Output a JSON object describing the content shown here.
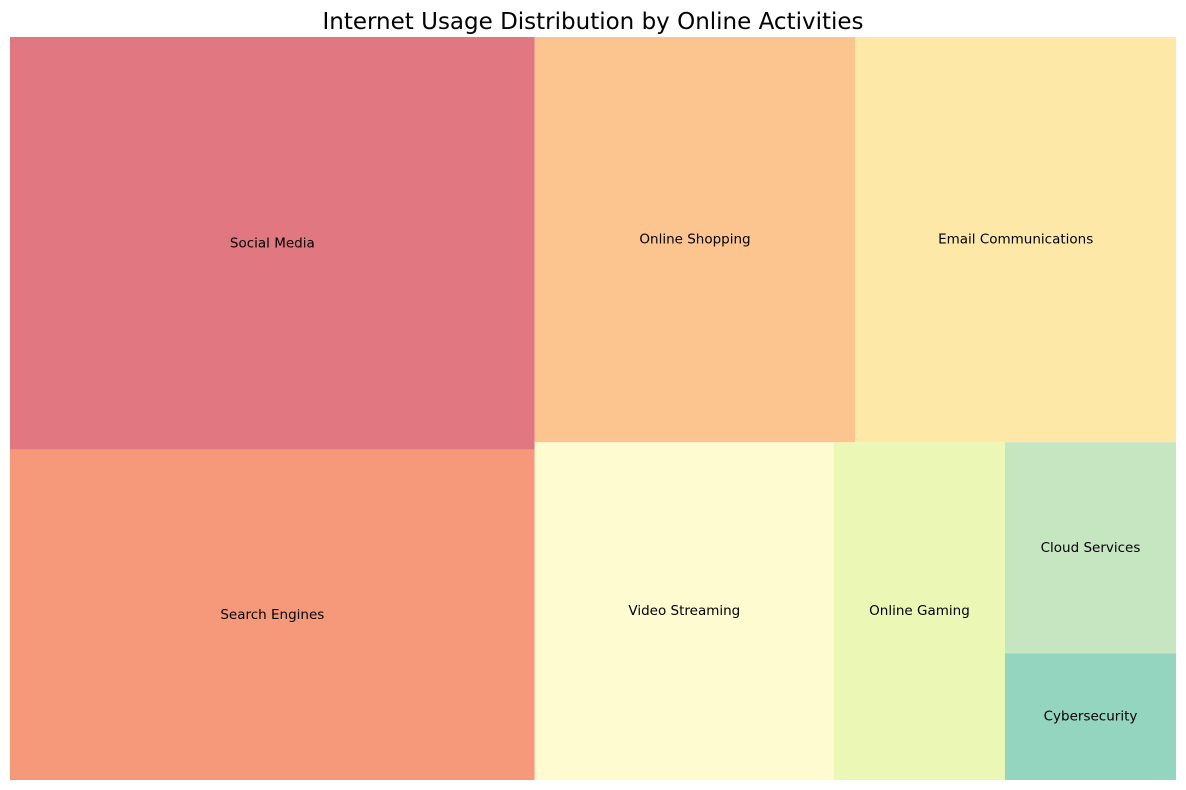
{
  "chart_data": {
    "type": "treemap",
    "title": "Internet Usage Distribution by Online Activities",
    "items": [
      {
        "label": "Social Media",
        "value": 30,
        "color": "#e07781"
      },
      {
        "label": "Search Engines",
        "value": 24,
        "color": "#f6997b"
      },
      {
        "label": "Online Shopping",
        "value": 18,
        "color": "#fcc58f"
      },
      {
        "label": "Email Communications",
        "value": 18,
        "color": "#fde8a8"
      },
      {
        "label": "Video Streaming",
        "value": 14,
        "color": "#fefbd1"
      },
      {
        "label": "Online Gaming",
        "value": 8,
        "color": "#ebf7b5"
      },
      {
        "label": "Cloud Services",
        "value": 5,
        "color": "#c5e6c1"
      },
      {
        "label": "Cybersecurity",
        "value": 3,
        "color": "#94d5c0"
      }
    ]
  }
}
